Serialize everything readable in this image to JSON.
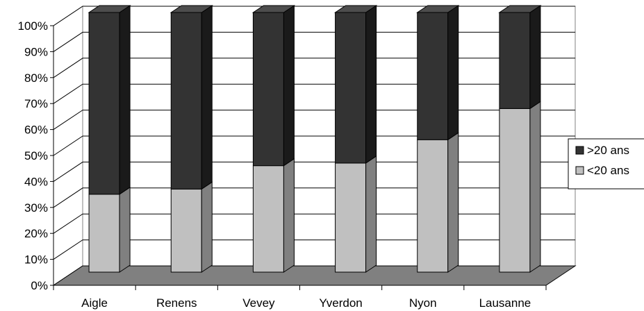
{
  "chart_data": {
    "type": "bar",
    "stacked": true,
    "percent": true,
    "three_d": true,
    "categories": [
      "Aigle",
      "Renens",
      "Vevey",
      "Yverdon",
      "Nyon",
      "Lausanne"
    ],
    "series": [
      {
        "name": "<20 ans",
        "values": [
          30,
          32,
          41,
          42,
          51,
          63
        ],
        "color": "#c0c0c0"
      },
      {
        "name": ">20 ans",
        "values": [
          70,
          68,
          59,
          58,
          49,
          37
        ],
        "color": "#333333"
      }
    ],
    "legend_order": [
      ">20 ans",
      "<20 ans"
    ],
    "y_ticks": [
      "0%",
      "10%",
      "20%",
      "30%",
      "40%",
      "50%",
      "60%",
      "70%",
      "80%",
      "90%",
      "100%"
    ],
    "ylim": [
      0,
      100
    ],
    "grid": true,
    "legend_position": "right",
    "floor_color": "#808080"
  }
}
